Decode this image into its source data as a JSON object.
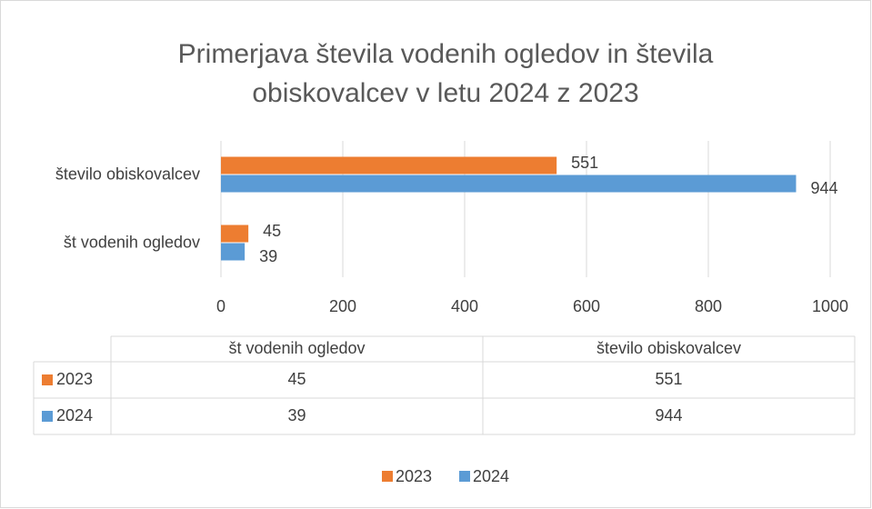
{
  "chart_data": {
    "type": "bar",
    "orientation": "horizontal",
    "title": "Primerjava števila vodenih ogledov in števila obiskovalcev v letu 2024 z 2023",
    "categories": [
      "št vodenih ogledov",
      "število obiskovalcev"
    ],
    "series": [
      {
        "name": "2023",
        "color": "#ed7d31",
        "values": [
          45,
          551
        ]
      },
      {
        "name": "2024",
        "color": "#5b9bd5",
        "values": [
          39,
          944
        ]
      }
    ],
    "xlim": [
      0,
      1000
    ],
    "xticks": [
      0,
      200,
      400,
      600,
      800,
      1000
    ],
    "grid": true,
    "data_table": true,
    "legend": "bottom"
  }
}
